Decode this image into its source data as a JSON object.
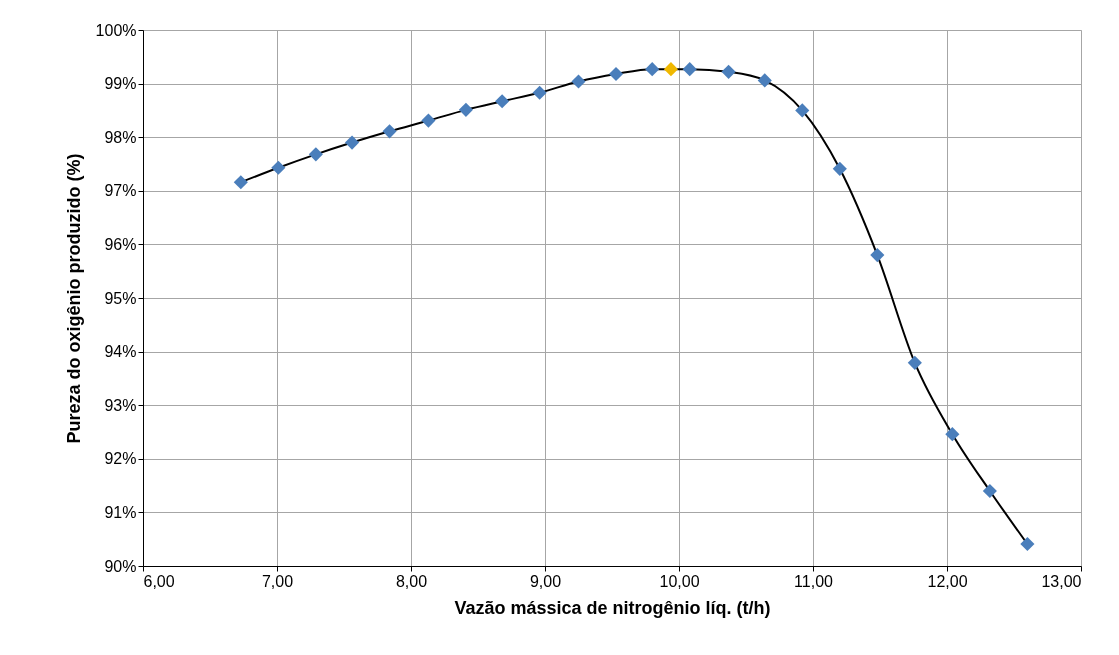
{
  "chart_data": {
    "type": "line",
    "xlabel": "Vazão mássica de nitrogênio líq. (t/h)",
    "ylabel": "Pureza do oxigênio produzido (%)",
    "x": [
      6.73,
      7.01,
      7.29,
      7.56,
      7.84,
      8.13,
      8.41,
      8.68,
      8.96,
      9.25,
      9.53,
      9.8,
      9.94,
      10.08,
      10.37,
      10.64,
      10.92,
      11.2,
      11.48,
      11.76,
      12.04,
      12.32,
      12.6
    ],
    "series": [
      {
        "color": "#000000",
        "values": [
          97.16,
          97.43,
          97.68,
          97.9,
          98.11,
          98.31,
          98.51,
          98.67,
          98.83,
          99.04,
          99.18,
          99.27,
          99.27,
          99.27,
          99.22,
          99.06,
          98.5,
          97.41,
          95.8,
          93.79,
          92.46,
          91.4,
          90.41
        ],
        "colors": [
          "#4a7ebb",
          "#4a7ebb",
          "#4a7ebb",
          "#4a7ebb",
          "#4a7ebb",
          "#4a7ebb",
          "#4a7ebb",
          "#4a7ebb",
          "#4a7ebb",
          "#4a7ebb",
          "#4a7ebb",
          "#4a7ebb",
          "#f0b800",
          "#4a7ebb",
          "#4a7ebb",
          "#4a7ebb",
          "#4a7ebb",
          "#4a7ebb",
          "#4a7ebb",
          "#4a7ebb",
          "#4a7ebb",
          "#4a7ebb",
          "#4a7ebb"
        ]
      }
    ],
    "marker": "diamond",
    "line_style": "solid",
    "grid": true,
    "xlim": [
      6,
      13
    ],
    "xticks": [
      {
        "value": 6,
        "label": "6,00"
      },
      {
        "value": 7,
        "label": "7,00"
      },
      {
        "value": 8,
        "label": "8,00"
      },
      {
        "value": 9,
        "label": "9,00"
      },
      {
        "value": 10,
        "label": "10,00"
      },
      {
        "value": 11,
        "label": "11,00"
      },
      {
        "value": 12,
        "label": "12,00"
      },
      {
        "value": 13,
        "label": "13,00"
      }
    ],
    "ylim": [
      90,
      100
    ],
    "yticks": [
      {
        "value": 90,
        "label": "90%"
      },
      {
        "value": 91,
        "label": "91%"
      },
      {
        "value": 92,
        "label": "92%"
      },
      {
        "value": 93,
        "label": "93%"
      },
      {
        "value": 94,
        "label": "94%"
      },
      {
        "value": 95,
        "label": "95%"
      },
      {
        "value": 96,
        "label": "96%"
      },
      {
        "value": 97,
        "label": "97%"
      },
      {
        "value": 98,
        "label": "98%"
      },
      {
        "value": 99,
        "label": "99%"
      },
      {
        "value": 100,
        "label": "100%"
      }
    ]
  }
}
